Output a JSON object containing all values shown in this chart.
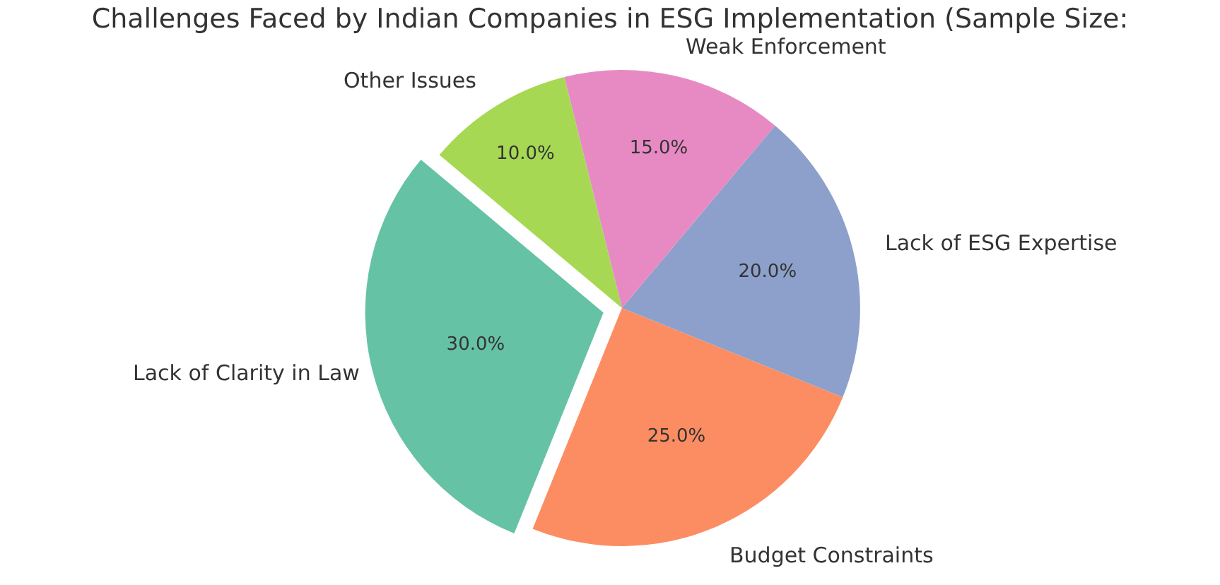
{
  "chart_data": {
    "type": "pie",
    "title": "Challenges Faced by Indian Companies in ESG Implementation (Sample Size:",
    "categories": [
      "Lack of Clarity in Law",
      "Budget Constraints",
      "Lack of ESG Expertise",
      "Weak Enforcement",
      "Other Issues"
    ],
    "values": [
      30,
      25,
      20,
      15,
      10
    ],
    "value_labels": [
      "30.0%",
      "25.0%",
      "20.0%",
      "15.0%",
      "10.0%"
    ],
    "colors": [
      "#66c2a5",
      "#fc8d62",
      "#8da0cb",
      "#e78ac3",
      "#a6d854"
    ],
    "legend": false
  }
}
